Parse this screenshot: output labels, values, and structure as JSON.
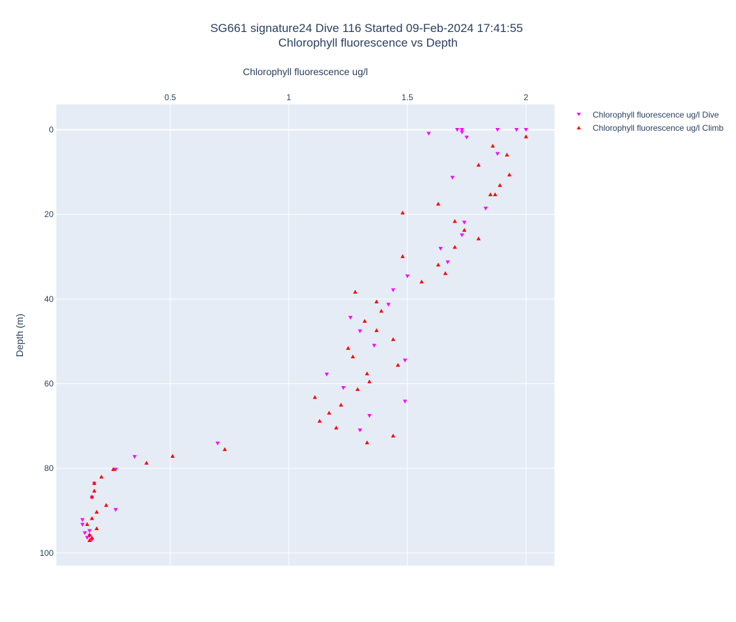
{
  "chart_data": {
    "type": "scatter",
    "title": "SG661 signature24 Dive 116 Started 09-Feb-2024 17:41:55",
    "subtitle": "Chlorophyll fluorescence vs Depth",
    "xlabel": "Chlorophyll fluorescence ug/l",
    "ylabel": "Depth (m)",
    "xlim": [
      0.02,
      2.12
    ],
    "ylim": [
      103,
      -6
    ],
    "x_axis_position": "top",
    "y_reversed": true,
    "grid": true,
    "legend_position": "top-right",
    "x_ticks": [
      0.5,
      1,
      1.5,
      2
    ],
    "x_tick_labels": [
      "0.5",
      "1",
      "1.5",
      "2"
    ],
    "y_ticks": [
      0,
      20,
      40,
      60,
      80,
      100
    ],
    "y_tick_labels": [
      "0",
      "20",
      "40",
      "60",
      "80",
      "100"
    ],
    "series": [
      {
        "name": "Chlorophyll fluorescence ug/l Dive",
        "color": "#ff00ff",
        "marker": "triangle-down",
        "points": [
          [
            1.71,
            0.0
          ],
          [
            1.73,
            0.0
          ],
          [
            1.88,
            0.0
          ],
          [
            1.96,
            0.0
          ],
          [
            2.0,
            0.0
          ],
          [
            1.73,
            0.6
          ],
          [
            1.59,
            0.9
          ],
          [
            1.75,
            1.8
          ],
          [
            1.88,
            5.7
          ],
          [
            1.69,
            11.3
          ],
          [
            1.83,
            18.6
          ],
          [
            1.74,
            21.9
          ],
          [
            1.73,
            24.9
          ],
          [
            1.64,
            28.1
          ],
          [
            1.67,
            31.3
          ],
          [
            1.5,
            34.6
          ],
          [
            1.44,
            37.9
          ],
          [
            1.42,
            41.3
          ],
          [
            1.26,
            44.4
          ],
          [
            1.3,
            47.6
          ],
          [
            1.36,
            51.0
          ],
          [
            1.49,
            54.5
          ],
          [
            1.16,
            57.8
          ],
          [
            1.23,
            61.0
          ],
          [
            1.49,
            64.2
          ],
          [
            1.34,
            67.6
          ],
          [
            1.3,
            71.0
          ],
          [
            0.7,
            74.1
          ],
          [
            0.35,
            77.3
          ],
          [
            0.27,
            80.3
          ],
          [
            0.18,
            83.6
          ],
          [
            0.17,
            86.9
          ],
          [
            0.27,
            89.8
          ],
          [
            0.13,
            92.2
          ],
          [
            0.13,
            93.3
          ],
          [
            0.16,
            94.8
          ],
          [
            0.14,
            95.3
          ],
          [
            0.16,
            96.0
          ],
          [
            0.15,
            96.4
          ],
          [
            0.17,
            96.9
          ]
        ]
      },
      {
        "name": "Chlorophyll fluorescence ug/l Climb",
        "color": "#ff0000",
        "marker": "triangle-up",
        "points": [
          [
            0.16,
            97.0
          ],
          [
            0.17,
            96.4
          ],
          [
            0.16,
            95.7
          ],
          [
            0.19,
            94.2
          ],
          [
            0.15,
            93.2
          ],
          [
            0.17,
            91.8
          ],
          [
            0.19,
            90.3
          ],
          [
            0.23,
            88.7
          ],
          [
            0.18,
            85.3
          ],
          [
            0.17,
            86.7
          ],
          [
            0.18,
            83.5
          ],
          [
            0.21,
            82.0
          ],
          [
            0.26,
            80.2
          ],
          [
            0.4,
            78.7
          ],
          [
            0.51,
            77.1
          ],
          [
            0.73,
            75.5
          ],
          [
            1.33,
            73.9
          ],
          [
            1.44,
            72.3
          ],
          [
            1.2,
            70.4
          ],
          [
            1.13,
            68.8
          ],
          [
            1.17,
            66.9
          ],
          [
            1.22,
            65.0
          ],
          [
            1.11,
            63.2
          ],
          [
            1.29,
            61.3
          ],
          [
            1.34,
            59.5
          ],
          [
            1.33,
            57.6
          ],
          [
            1.46,
            55.6
          ],
          [
            1.27,
            53.6
          ],
          [
            1.25,
            51.6
          ],
          [
            1.44,
            49.5
          ],
          [
            1.37,
            47.4
          ],
          [
            1.32,
            45.2
          ],
          [
            1.39,
            42.8
          ],
          [
            1.37,
            40.6
          ],
          [
            1.28,
            38.3
          ],
          [
            1.56,
            35.9
          ],
          [
            1.66,
            33.9
          ],
          [
            1.63,
            31.9
          ],
          [
            1.7,
            27.7
          ],
          [
            1.48,
            29.9
          ],
          [
            1.8,
            25.7
          ],
          [
            1.74,
            23.7
          ],
          [
            1.7,
            21.6
          ],
          [
            1.48,
            19.6
          ],
          [
            1.63,
            17.5
          ],
          [
            1.87,
            15.3
          ],
          [
            1.85,
            15.3
          ],
          [
            1.89,
            13.1
          ],
          [
            1.93,
            10.6
          ],
          [
            1.8,
            8.3
          ],
          [
            1.92,
            5.9
          ],
          [
            1.86,
            3.8
          ],
          [
            2.0,
            1.6
          ]
        ]
      }
    ]
  }
}
